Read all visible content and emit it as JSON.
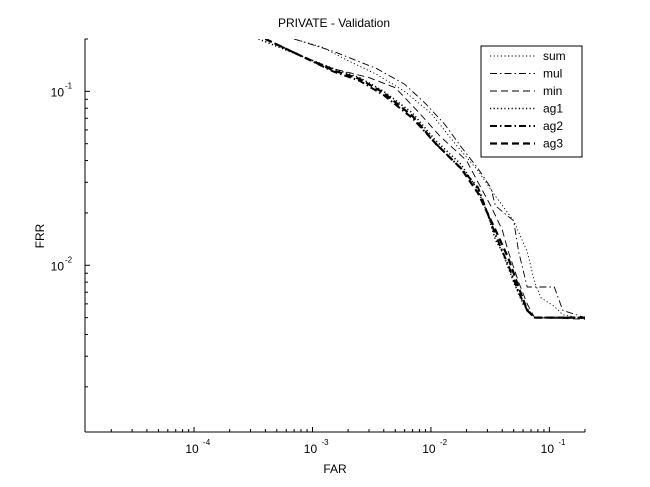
{
  "chart_data": {
    "type": "line",
    "title": "PRIVATE - Validation",
    "xlabel": "FAR",
    "ylabel": "FRR",
    "xscale": "log",
    "yscale": "log",
    "xlim": [
      1.2e-05,
      0.2
    ],
    "ylim": [
      0.0011,
      0.2
    ],
    "x_ticks": [
      {
        "value": 0.0001,
        "base": "10",
        "exp": "-4"
      },
      {
        "value": 0.001,
        "base": "10",
        "exp": "-3"
      },
      {
        "value": 0.01,
        "base": "10",
        "exp": "-2"
      },
      {
        "value": 0.1,
        "base": "10",
        "exp": "-1"
      }
    ],
    "y_ticks": [
      {
        "value": 0.01,
        "base": "10",
        "exp": "-2"
      },
      {
        "value": 0.1,
        "base": "10",
        "exp": "-1"
      }
    ],
    "grid": false,
    "legend_position": "top-right",
    "series": [
      {
        "name": "sum",
        "style": "dotted",
        "width": 0.9,
        "color": "#000000",
        "points": [
          [
            0.0007,
            0.2
          ],
          [
            0.0012,
            0.18
          ],
          [
            0.002,
            0.15
          ],
          [
            0.0035,
            0.125
          ],
          [
            0.006,
            0.1
          ],
          [
            0.01,
            0.075
          ],
          [
            0.016,
            0.05
          ],
          [
            0.025,
            0.035
          ],
          [
            0.035,
            0.025
          ],
          [
            0.05,
            0.018
          ],
          [
            0.065,
            0.012
          ],
          [
            0.075,
            0.008
          ],
          [
            0.085,
            0.0065
          ],
          [
            0.11,
            0.0058
          ],
          [
            0.13,
            0.0052
          ],
          [
            0.2,
            0.0049
          ]
        ]
      },
      {
        "name": "mul",
        "style": "dashdot",
        "width": 0.9,
        "color": "#000000",
        "points": [
          [
            0.0007,
            0.2
          ],
          [
            0.0015,
            0.17
          ],
          [
            0.0035,
            0.135
          ],
          [
            0.006,
            0.11
          ],
          [
            0.009,
            0.085
          ],
          [
            0.013,
            0.065
          ],
          [
            0.018,
            0.048
          ],
          [
            0.025,
            0.036
          ],
          [
            0.032,
            0.028
          ],
          [
            0.035,
            0.022
          ],
          [
            0.05,
            0.018
          ],
          [
            0.055,
            0.012
          ],
          [
            0.065,
            0.0075
          ],
          [
            0.11,
            0.0075
          ],
          [
            0.13,
            0.0055
          ],
          [
            0.2,
            0.005
          ]
        ]
      },
      {
        "name": "min",
        "style": "dashed",
        "width": 0.9,
        "color": "#000000",
        "points": [
          [
            0.0004,
            0.2
          ],
          [
            0.0008,
            0.16
          ],
          [
            0.0015,
            0.135
          ],
          [
            0.003,
            0.12
          ],
          [
            0.005,
            0.105
          ],
          [
            0.008,
            0.075
          ],
          [
            0.012,
            0.055
          ],
          [
            0.02,
            0.04
          ],
          [
            0.025,
            0.03
          ],
          [
            0.032,
            0.022
          ],
          [
            0.04,
            0.016
          ],
          [
            0.045,
            0.012
          ],
          [
            0.055,
            0.008
          ],
          [
            0.065,
            0.006
          ],
          [
            0.075,
            0.005
          ],
          [
            0.2,
            0.0049
          ]
        ]
      },
      {
        "name": "ag1",
        "style": "dotted",
        "width": 1.6,
        "color": "#000000",
        "points": [
          [
            0.00035,
            0.2
          ],
          [
            0.0008,
            0.16
          ],
          [
            0.0015,
            0.135
          ],
          [
            0.0025,
            0.12
          ],
          [
            0.004,
            0.1
          ],
          [
            0.007,
            0.075
          ],
          [
            0.011,
            0.052
          ],
          [
            0.018,
            0.038
          ],
          [
            0.025,
            0.027
          ],
          [
            0.03,
            0.02
          ],
          [
            0.035,
            0.014
          ],
          [
            0.04,
            0.012
          ],
          [
            0.05,
            0.008
          ],
          [
            0.06,
            0.006
          ],
          [
            0.075,
            0.005
          ],
          [
            0.2,
            0.005
          ]
        ]
      },
      {
        "name": "ag2",
        "style": "dashdot",
        "width": 2.0,
        "color": "#000000",
        "points": [
          [
            0.0004,
            0.2
          ],
          [
            0.0008,
            0.16
          ],
          [
            0.0015,
            0.13
          ],
          [
            0.0025,
            0.115
          ],
          [
            0.004,
            0.095
          ],
          [
            0.007,
            0.07
          ],
          [
            0.011,
            0.05
          ],
          [
            0.018,
            0.036
          ],
          [
            0.025,
            0.028
          ],
          [
            0.03,
            0.02
          ],
          [
            0.035,
            0.015
          ],
          [
            0.045,
            0.01
          ],
          [
            0.055,
            0.007
          ],
          [
            0.065,
            0.0055
          ],
          [
            0.075,
            0.005
          ],
          [
            0.2,
            0.005
          ]
        ]
      },
      {
        "name": "ag3",
        "style": "dashed",
        "width": 2.2,
        "color": "#000000",
        "points": [
          [
            0.0004,
            0.2
          ],
          [
            0.0008,
            0.16
          ],
          [
            0.0015,
            0.132
          ],
          [
            0.0025,
            0.118
          ],
          [
            0.004,
            0.098
          ],
          [
            0.007,
            0.072
          ],
          [
            0.011,
            0.05
          ],
          [
            0.018,
            0.036
          ],
          [
            0.025,
            0.026
          ],
          [
            0.03,
            0.02
          ],
          [
            0.035,
            0.016
          ],
          [
            0.045,
            0.011
          ],
          [
            0.055,
            0.0075
          ],
          [
            0.065,
            0.0055
          ],
          [
            0.075,
            0.005
          ],
          [
            0.2,
            0.005
          ]
        ]
      }
    ]
  }
}
